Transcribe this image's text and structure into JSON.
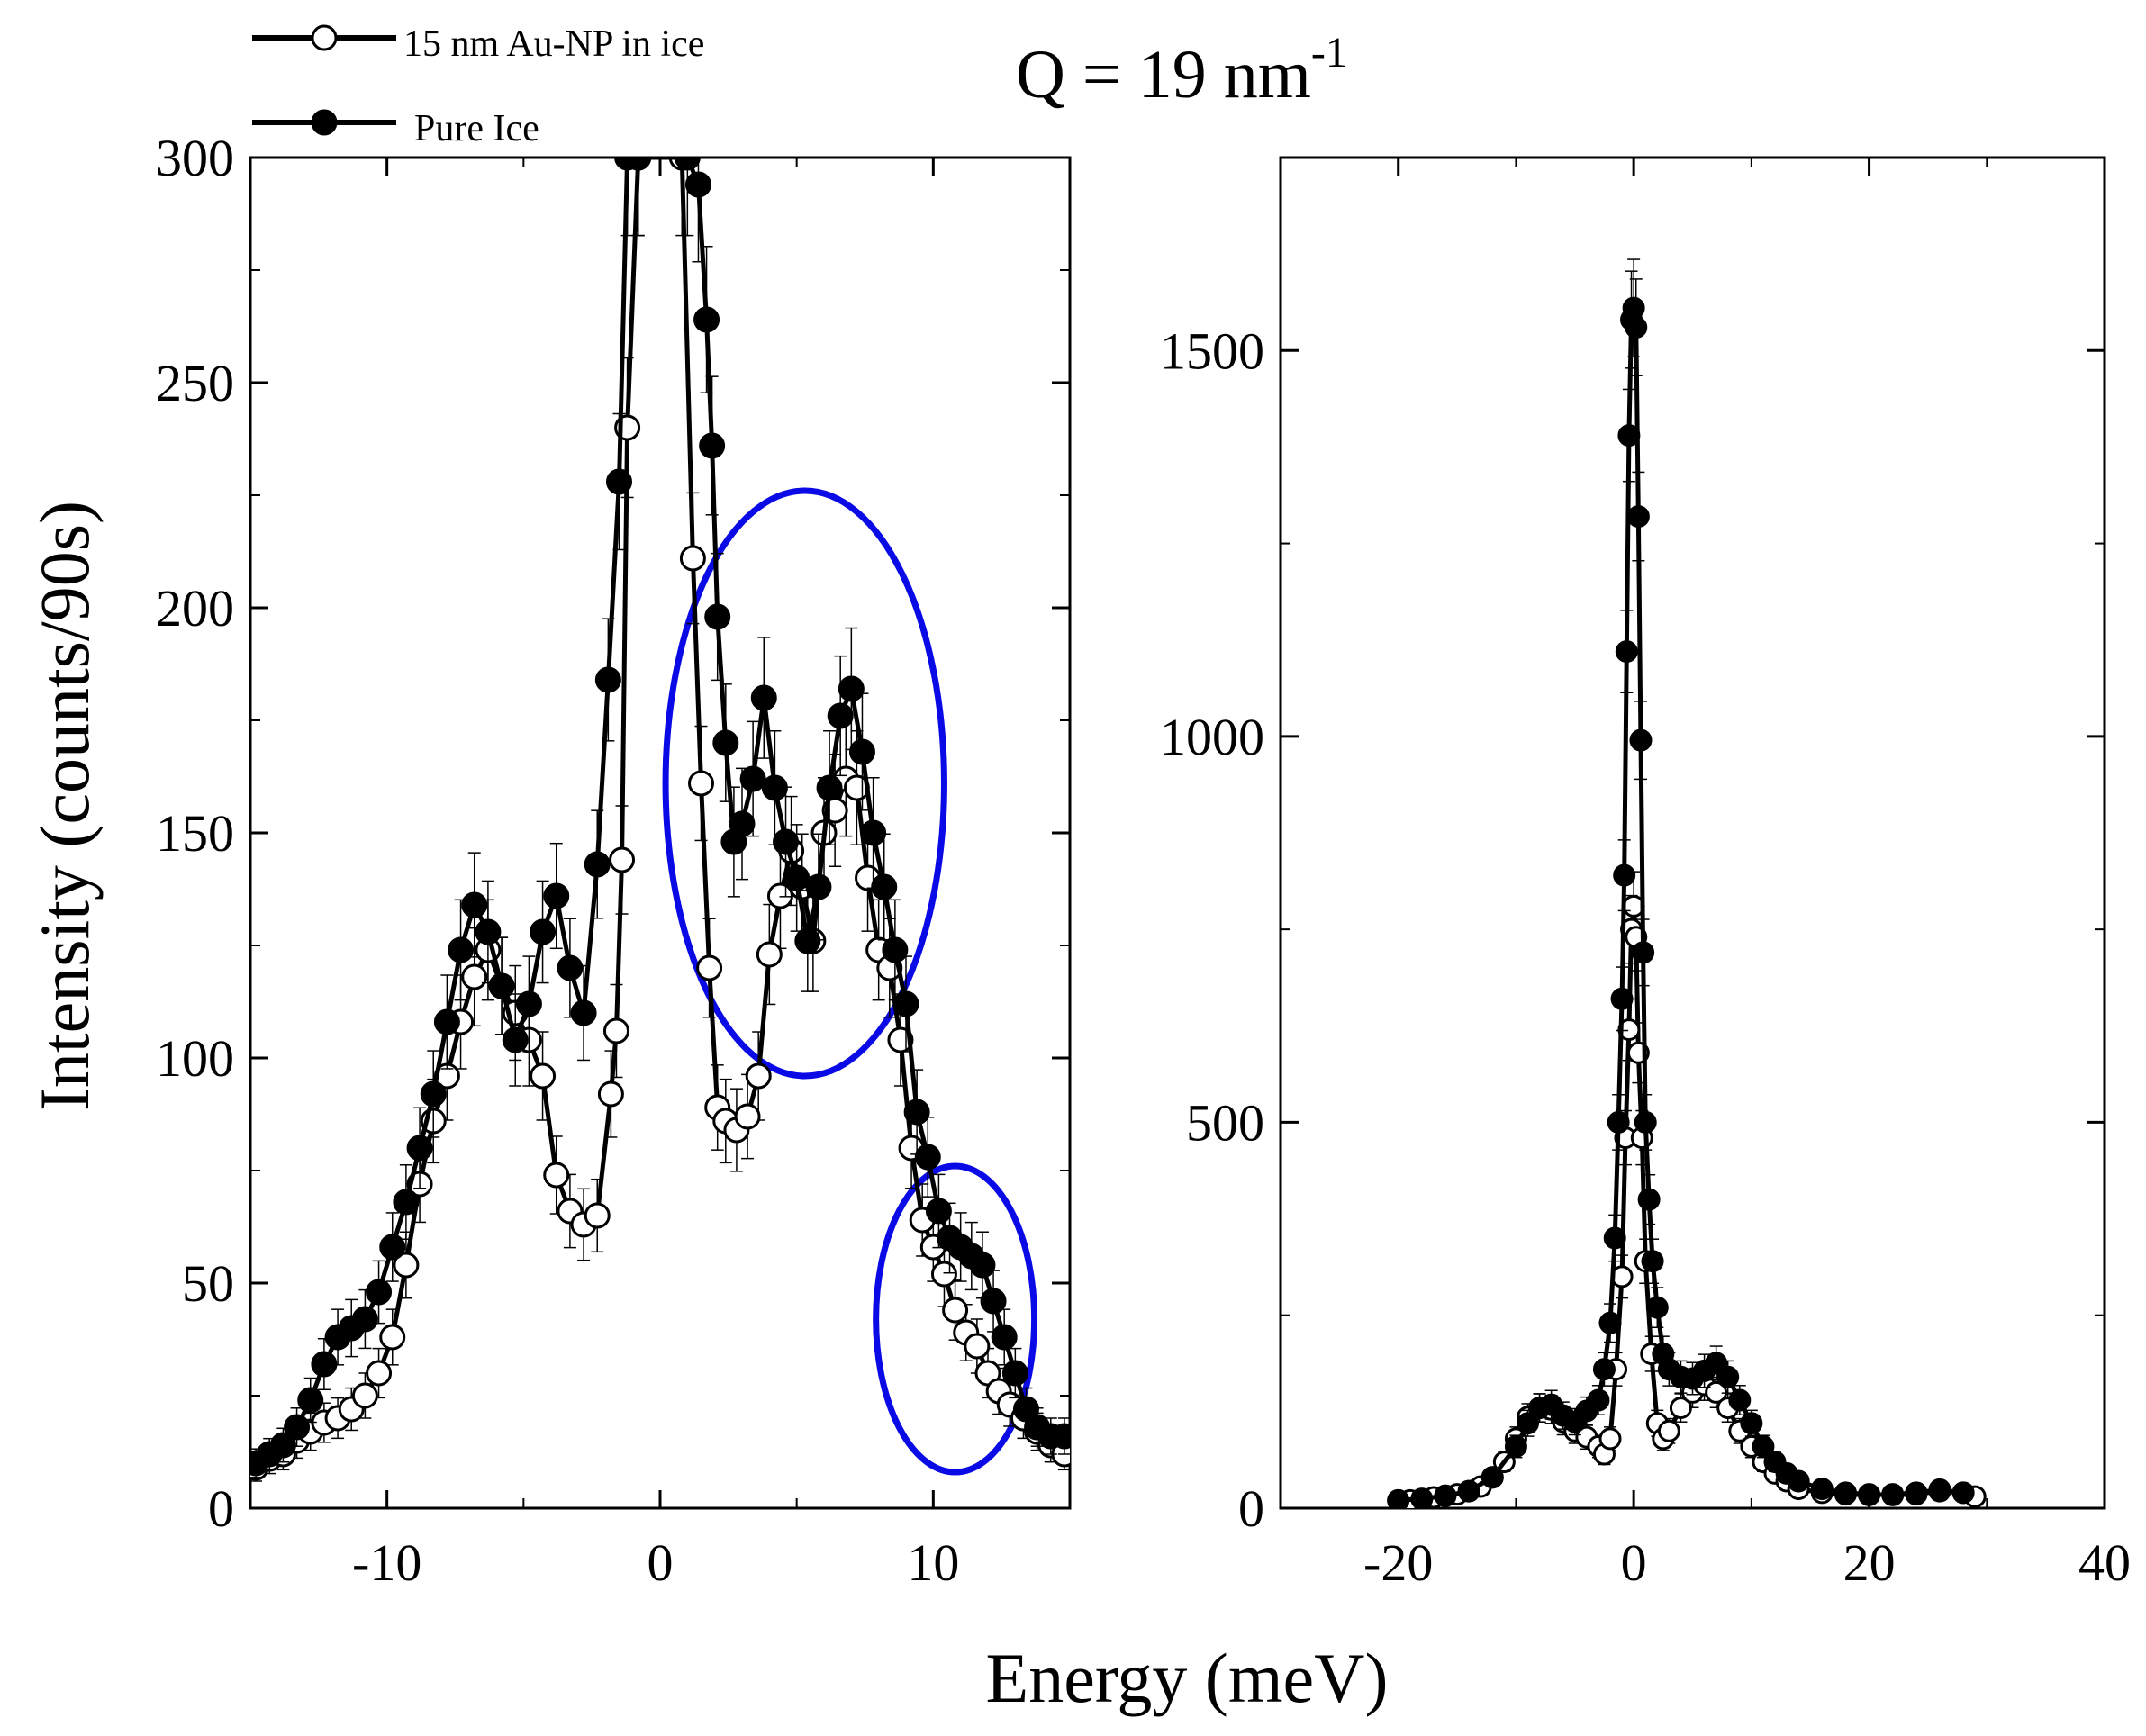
{
  "title": "Q = 19 nm",
  "title_sup": "-1",
  "ylabel": "Intensity (counts/90s)",
  "xlabel": "Energy (meV)",
  "legend": [
    {
      "label": "15 nm Au-NP in ice",
      "marker": "open-circle",
      "color": "#000000"
    },
    {
      "label": "Pure Ice",
      "marker": "filled-circle",
      "color": "#000000"
    }
  ],
  "colors": {
    "series": "#000000",
    "highlight": "#0a0ae6"
  },
  "chart_data": [
    {
      "id": "left",
      "type": "scatter",
      "xlim": [
        -15,
        15
      ],
      "ylim": [
        0,
        300
      ],
      "xticks": [
        -10,
        0,
        10
      ],
      "xtick_labels": [
        "-10",
        "0",
        "10"
      ],
      "yticks": [
        0,
        50,
        100,
        150,
        200,
        250,
        300
      ],
      "ytick_labels": [
        "0",
        "50",
        "100",
        "150",
        "200",
        "250",
        "300"
      ],
      "highlight_ellipses": [
        {
          "cx": 5.3,
          "cy": 161,
          "rx": 5.1,
          "ry": 65
        },
        {
          "cx": 10.8,
          "cy": 42,
          "rx": 2.9,
          "ry": 34
        }
      ],
      "series": [
        {
          "name": "15 nm Au-NP in ice",
          "marker": "open",
          "x": [
            -14.8,
            -14.3,
            -13.8,
            -13.3,
            -12.8,
            -12.3,
            -11.8,
            -11.3,
            -10.8,
            -10.3,
            -9.8,
            -9.3,
            -8.8,
            -8.3,
            -7.8,
            -7.3,
            -6.8,
            -6.3,
            -5.8,
            -5.3,
            -4.8,
            -4.3,
            -3.8,
            -3.3,
            -2.8,
            -2.3,
            -1.8,
            -1.6,
            -1.4,
            -1.2,
            -0.8,
            0.8,
            1.2,
            1.5,
            1.8,
            2.1,
            2.4,
            2.8,
            3.2,
            3.6,
            4.0,
            4.4,
            4.8,
            5.2,
            5.6,
            6.0,
            6.4,
            6.8,
            7.2,
            7.6,
            8.0,
            8.4,
            8.8,
            9.2,
            9.6,
            10.0,
            10.4,
            10.8,
            11.2,
            11.6,
            12.0,
            12.4,
            12.8,
            13.3,
            13.8,
            14.3,
            14.8
          ],
          "y": [
            9,
            11,
            12,
            15,
            17,
            19,
            20,
            22,
            25,
            30,
            38,
            54,
            72,
            86,
            96,
            108,
            118,
            124,
            116,
            110,
            104,
            96,
            74,
            66,
            63,
            65,
            92,
            106,
            144,
            240,
            300,
            300,
            211,
            161,
            120,
            89,
            86,
            84,
            87,
            96,
            123,
            136,
            146,
            138,
            126,
            150,
            155,
            162,
            160,
            140,
            124,
            120,
            104,
            80,
            64,
            58,
            52,
            44,
            39,
            36,
            30,
            26,
            23,
            20,
            17,
            14,
            12
          ]
        },
        {
          "name": "Pure Ice",
          "marker": "filled",
          "x": [
            -14.8,
            -14.3,
            -13.8,
            -13.3,
            -12.8,
            -12.3,
            -11.8,
            -11.3,
            -10.8,
            -10.3,
            -9.8,
            -9.3,
            -8.8,
            -8.3,
            -7.8,
            -7.3,
            -6.8,
            -6.3,
            -5.8,
            -5.3,
            -4.8,
            -4.3,
            -3.8,
            -3.3,
            -2.8,
            -2.3,
            -1.9,
            -1.5,
            -1.2,
            -0.8,
            1.0,
            1.4,
            1.7,
            1.9,
            2.1,
            2.4,
            2.7,
            3.0,
            3.4,
            3.8,
            4.2,
            4.6,
            5.0,
            5.4,
            5.8,
            6.2,
            6.6,
            7.0,
            7.4,
            7.8,
            8.2,
            8.6,
            9.0,
            9.4,
            9.8,
            10.2,
            10.6,
            11.0,
            11.4,
            11.8,
            12.2,
            12.6,
            13.0,
            13.4,
            13.8,
            14.3,
            14.8
          ],
          "y": [
            10,
            12,
            14,
            18,
            24,
            32,
            38,
            40,
            42,
            48,
            58,
            68,
            80,
            92,
            108,
            124,
            134,
            128,
            116,
            104,
            112,
            128,
            136,
            120,
            110,
            143,
            184,
            228,
            300,
            300,
            300,
            294,
            264,
            236,
            198,
            170,
            148,
            152,
            162,
            180,
            160,
            148,
            140,
            126,
            138,
            160,
            176,
            182,
            168,
            150,
            138,
            124,
            112,
            88,
            78,
            66,
            60,
            58,
            56,
            54,
            46,
            38,
            30,
            22,
            18,
            16,
            16
          ]
        }
      ]
    },
    {
      "id": "right",
      "type": "scatter",
      "xlim": [
        -30,
        40
      ],
      "ylim": [
        0,
        1750
      ],
      "xticks": [
        -20,
        0,
        20,
        40
      ],
      "xtick_labels": [
        "-20",
        "0",
        "20",
        "40"
      ],
      "yticks": [
        0,
        500,
        1000,
        1500
      ],
      "ytick_labels": [
        "0",
        "500",
        "1000",
        "1500"
      ],
      "series": [
        {
          "name": "15 nm Au-NP in ice",
          "marker": "open",
          "x": [
            -20,
            -19,
            -18,
            -17,
            -16,
            -15,
            -14,
            -13,
            -12,
            -11,
            -10,
            -9,
            -8,
            -7,
            -6,
            -5,
            -4,
            -3,
            -2.5,
            -2,
            -1.5,
            -1,
            -0.7,
            -0.4,
            -0.2,
            0,
            0.2,
            0.4,
            0.7,
            1,
            1.5,
            2,
            2.5,
            3,
            4,
            5,
            6,
            7,
            8,
            9,
            10,
            11,
            12,
            13,
            14,
            16,
            18,
            20,
            22,
            24,
            26,
            28,
            29
          ],
          "y": [
            10,
            10,
            12,
            14,
            16,
            18,
            22,
            28,
            40,
            60,
            90,
            118,
            130,
            128,
            112,
            100,
            92,
            80,
            70,
            90,
            180,
            300,
            480,
            620,
            750,
            780,
            740,
            590,
            480,
            320,
            200,
            110,
            90,
            100,
            130,
            150,
            160,
            150,
            130,
            100,
            80,
            60,
            45,
            35,
            25,
            20,
            18,
            17,
            18,
            20,
            24,
            20,
            15
          ]
        },
        {
          "name": "Pure Ice",
          "marker": "filled",
          "x": [
            -20,
            -18,
            -16,
            -14,
            -12,
            -10,
            -9,
            -8,
            -7,
            -6,
            -5,
            -4,
            -3,
            -2.5,
            -2,
            -1.6,
            -1.3,
            -1.0,
            -0.8,
            -0.6,
            -0.4,
            -0.2,
            0,
            0.2,
            0.4,
            0.6,
            0.8,
            1.0,
            1.3,
            1.6,
            2,
            2.5,
            3,
            4,
            5,
            6,
            7,
            8,
            9,
            10,
            11,
            12,
            13,
            14,
            16,
            18,
            20,
            22,
            24,
            26,
            28
          ],
          "y": [
            10,
            12,
            16,
            22,
            40,
            80,
            110,
            130,
            134,
            120,
            112,
            126,
            140,
            180,
            240,
            350,
            500,
            660,
            820,
            1110,
            1390,
            1540,
            1555,
            1530,
            1285,
            995,
            720,
            500,
            400,
            320,
            260,
            200,
            180,
            170,
            168,
            178,
            188,
            170,
            140,
            110,
            80,
            60,
            45,
            35,
            25,
            20,
            18,
            17,
            18,
            22,
            20
          ]
        }
      ]
    }
  ]
}
